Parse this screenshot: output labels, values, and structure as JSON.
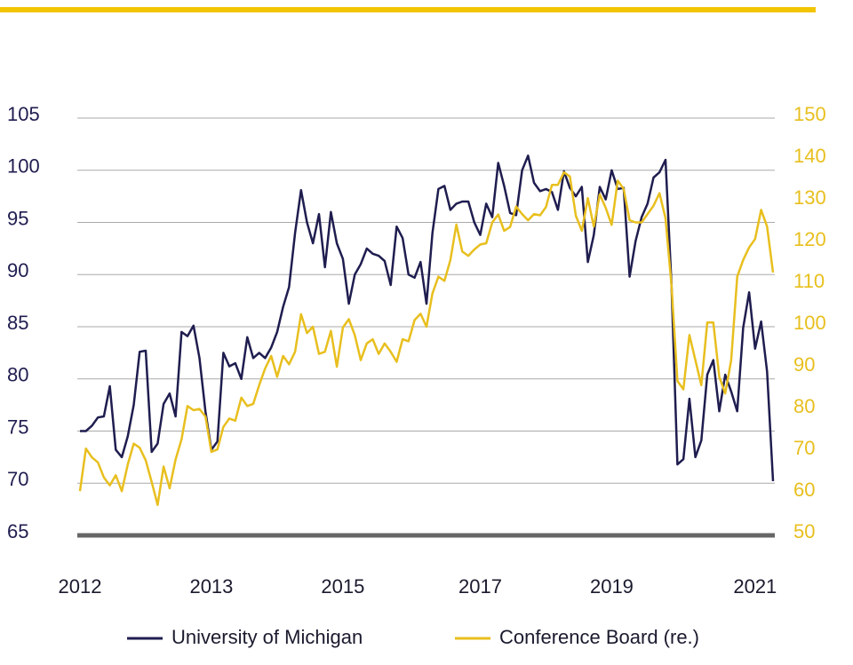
{
  "chart_data": {
    "type": "line",
    "categories": [
      "2012",
      null,
      null,
      null,
      null,
      null,
      null,
      null,
      null,
      null,
      null,
      null,
      null,
      null,
      null,
      null,
      null,
      null,
      null,
      null,
      null,
      null,
      "2013",
      null,
      null,
      null,
      null,
      null,
      null,
      null,
      null,
      null,
      null,
      null,
      null,
      null,
      null,
      null,
      null,
      null,
      null,
      null,
      null,
      null,
      "2015",
      null,
      null,
      null,
      null,
      null,
      null,
      null,
      null,
      null,
      null,
      null,
      null,
      null,
      null,
      null,
      null,
      null,
      null,
      null,
      null,
      null,
      null,
      "2017",
      null,
      null,
      null,
      null,
      null,
      null,
      null,
      null,
      null,
      null,
      null,
      null,
      null,
      null,
      null,
      null,
      null,
      null,
      null,
      null,
      null,
      "2019",
      null,
      null,
      null,
      null,
      null,
      null,
      null,
      null,
      null,
      null,
      null,
      null,
      null,
      null,
      null,
      null,
      null,
      null,
      null,
      null,
      null,
      null,
      null,
      "2021",
      null,
      null,
      null
    ],
    "series": [
      {
        "name": "University of Michigan",
        "color": "#1f1d4f",
        "values": [
          75,
          75,
          75.5,
          76.3,
          76.4,
          79.3,
          73.2,
          72.5,
          74.5,
          77.5,
          82.6,
          82.7,
          73,
          73.8,
          77.6,
          78.6,
          76.4,
          84.5,
          84.1,
          85.1,
          82,
          76.9,
          73.2,
          74,
          82.5,
          81.2,
          81.5,
          80,
          84,
          82,
          82.5,
          82,
          83,
          84.5,
          86.9,
          88.8,
          94,
          98.1,
          95,
          93,
          95.8,
          90.7,
          96,
          93,
          91.5,
          87.2,
          90,
          91,
          92.5,
          92,
          91.8,
          91.3,
          89,
          94.6,
          93.5,
          90,
          89.7,
          91.2,
          87.2,
          94,
          98.2,
          98.5,
          96.2,
          96.8,
          97,
          97,
          95,
          93.8,
          96.8,
          95.5,
          100.7,
          98.5,
          95.9,
          95.7,
          100,
          101.4,
          98.8,
          98,
          98.2,
          97.9,
          96.2,
          99.9,
          98.3,
          97.5,
          98.4,
          91.2,
          93.8,
          98.4,
          97.2,
          100,
          98.2,
          98.3,
          89.8,
          93.2,
          95.5,
          96.8,
          99.3,
          99.8,
          101,
          89.1,
          71.8,
          72.3,
          78.1,
          72.5,
          74.1,
          80.4,
          81.8,
          76.9,
          80.4,
          78.8,
          76.9,
          84.9,
          88.3,
          82.9,
          85.5,
          80.7,
          70.2
        ]
      },
      {
        "name": "Conference Board (re.)",
        "color": "#e8bf1e",
        "axis": "y2",
        "values": [
          60.6,
          70.8,
          68.7,
          67.5,
          63.9,
          62,
          64.4,
          60.6,
          67,
          72,
          71,
          68,
          62.8,
          57.3,
          66.5,
          61.3,
          68.2,
          73,
          81,
          80,
          80.3,
          78.5,
          70,
          70.6,
          76,
          78,
          77.5,
          83,
          81,
          81.5,
          86,
          90,
          93,
          88,
          93,
          91,
          94,
          103,
          98.5,
          100,
          93.5,
          94,
          99,
          90.4,
          99.8,
          101.8,
          98,
          92,
          96,
          97,
          93.5,
          96,
          94,
          91.6,
          97,
          96.5,
          101.6,
          103.1,
          100,
          108,
          112,
          111,
          116,
          124.5,
          118,
          117,
          118.5,
          119.7,
          120,
          125,
          126.9,
          123,
          123.9,
          128.8,
          127,
          125.5,
          127,
          126.7,
          128.7,
          134,
          134,
          137,
          136,
          126.6,
          123,
          130.8,
          124,
          131.7,
          128.5,
          124.4,
          135,
          133,
          125.5,
          125,
          125,
          127,
          129,
          132,
          126,
          110,
          87,
          85,
          98,
          92,
          86,
          101,
          101,
          88,
          84,
          92,
          112,
          116,
          119,
          121,
          128,
          124,
          113
        ]
      }
    ],
    "ylim": [
      65,
      105
    ],
    "yticks": [
      65,
      70,
      75,
      80,
      85,
      90,
      95,
      100,
      105
    ],
    "y2lim": [
      50,
      150
    ],
    "y2ticks": [
      50,
      60,
      70,
      80,
      90,
      100,
      110,
      120,
      130,
      140,
      150
    ],
    "grid": true
  }
}
